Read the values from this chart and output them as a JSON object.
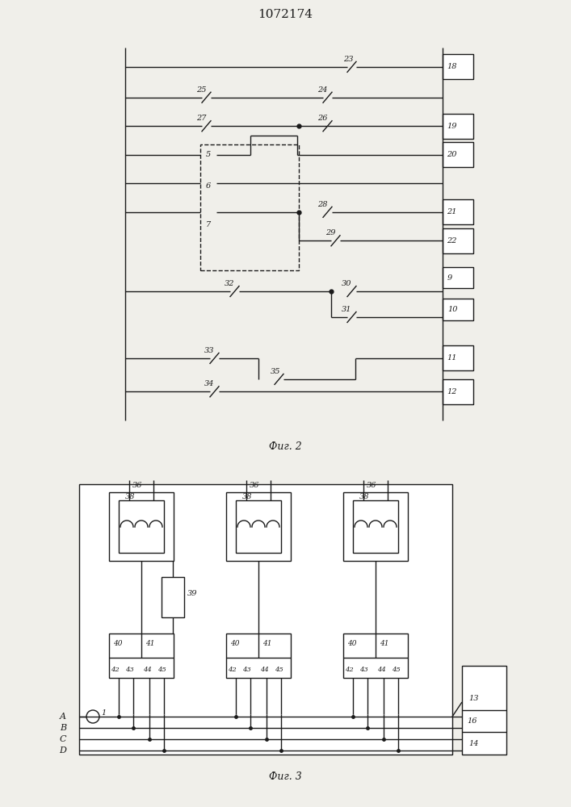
{
  "title": "1072174",
  "fig2_caption": "Фиг. 2",
  "fig3_caption": "Фиг. 3",
  "bg_color": "#f0efea",
  "line_color": "#1a1a1a",
  "lw": 1.0
}
